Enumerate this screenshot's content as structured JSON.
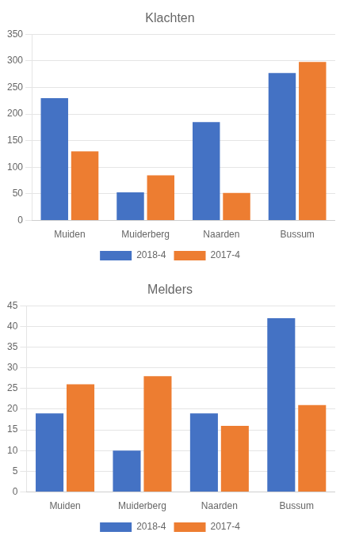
{
  "chart_data": [
    {
      "type": "bar",
      "title": "Klachten",
      "categories": [
        "Muiden",
        "Muiderberg",
        "Naarden",
        "Bussum"
      ],
      "series": [
        {
          "name": "2018-4",
          "color": "#4472C4",
          "values": [
            230,
            53,
            185,
            277
          ]
        },
        {
          "name": "2017-4",
          "color": "#ED7D31",
          "values": [
            130,
            85,
            52,
            298
          ]
        }
      ],
      "ylim": [
        0,
        350
      ],
      "yticks": [
        0,
        50,
        100,
        150,
        200,
        250,
        300,
        350
      ],
      "grid": true,
      "legend": "bottom"
    },
    {
      "type": "bar",
      "title": "Melders",
      "categories": [
        "Muiden",
        "Muiderberg",
        "Naarden",
        "Bussum"
      ],
      "series": [
        {
          "name": "2018-4",
          "color": "#4472C4",
          "values": [
            19,
            10,
            19,
            42
          ]
        },
        {
          "name": "2017-4",
          "color": "#ED7D31",
          "values": [
            26,
            28,
            16,
            21
          ]
        }
      ],
      "ylim": [
        0,
        45
      ],
      "yticks": [
        0,
        5,
        10,
        15,
        20,
        25,
        30,
        35,
        40,
        45
      ],
      "grid": true,
      "legend": "bottom"
    }
  ]
}
